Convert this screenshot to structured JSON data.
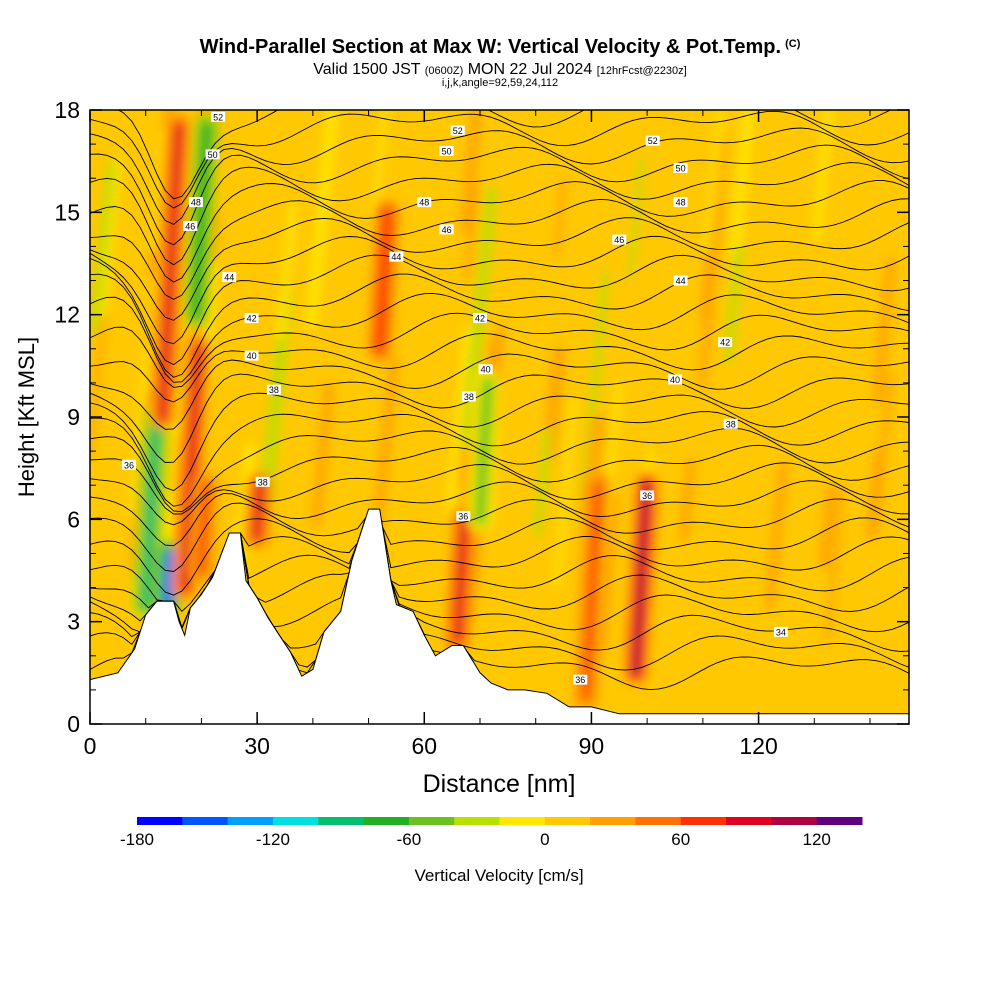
{
  "header": {
    "title": "Wind-Parallel Section at Max W: Vertical Velocity & Pot.Temp.",
    "title_units": "(C)",
    "valid_prefix": "Valid 1500 JST",
    "valid_utc": "(0600Z)",
    "valid_date": "MON 22 Jul 2024",
    "forecast_info": "[12hrFcst@2230z]",
    "section_params": "i,j,k,angle=92,59,24,112"
  },
  "chart_data": {
    "type": "heatmap",
    "xlabel": "Distance [nm]",
    "ylabel": "Height [Kft MSL]",
    "xlim": [
      0,
      147
    ],
    "ylim": [
      0,
      18
    ],
    "x_ticks": [
      0,
      30,
      60,
      90,
      120
    ],
    "y_ticks": [
      0,
      3,
      6,
      9,
      12,
      15,
      18
    ],
    "colorbar": {
      "label": "Vertical Velocity [cm/s]",
      "min": -180,
      "max": 140,
      "ticks": [
        -180,
        -120,
        -60,
        0,
        60,
        120
      ],
      "colors": [
        "#0000ff",
        "#0055ff",
        "#00a0ff",
        "#00e0e0",
        "#00c070",
        "#20b020",
        "#6cc020",
        "#b8e000",
        "#ffe800",
        "#ffc800",
        "#ffa000",
        "#ff7000",
        "#ff3000",
        "#e00020",
        "#b00040",
        "#600080"
      ]
    },
    "terrain_kft": [
      [
        0,
        1.3
      ],
      [
        5,
        1.5
      ],
      [
        8,
        2.2
      ],
      [
        10,
        3.2
      ],
      [
        12,
        3.6
      ],
      [
        15,
        3.6
      ],
      [
        16,
        3.0
      ],
      [
        17,
        2.6
      ],
      [
        18,
        3.4
      ],
      [
        20,
        3.8
      ],
      [
        22,
        4.3
      ],
      [
        25,
        5.6
      ],
      [
        27,
        5.6
      ],
      [
        28,
        4.2
      ],
      [
        30,
        3.7
      ],
      [
        32,
        3.1
      ],
      [
        34,
        2.6
      ],
      [
        36,
        2.1
      ],
      [
        38,
        1.4
      ],
      [
        40,
        1.6
      ],
      [
        42,
        2.7
      ],
      [
        45,
        3.3
      ],
      [
        47,
        4.8
      ],
      [
        50,
        6.3
      ],
      [
        52,
        6.3
      ],
      [
        54,
        4.2
      ],
      [
        55,
        3.5
      ],
      [
        58,
        3.3
      ],
      [
        60,
        2.6
      ],
      [
        62,
        2.0
      ],
      [
        65,
        2.3
      ],
      [
        67,
        2.3
      ],
      [
        70,
        1.5
      ],
      [
        72,
        1.2
      ],
      [
        75,
        1.0
      ],
      [
        78,
        1.0
      ],
      [
        82,
        0.9
      ],
      [
        86,
        0.5
      ],
      [
        90,
        0.5
      ],
      [
        95,
        0.3
      ],
      [
        147,
        0.3
      ]
    ],
    "theta_contours": [
      {
        "level": 34,
        "label_at": [
          124,
          2.7
        ]
      },
      {
        "level": 36,
        "label_at": [
          7,
          7.6
        ]
      },
      {
        "level": 36,
        "label_at": [
          67,
          6.1
        ]
      },
      {
        "level": 36,
        "label_at": [
          88,
          1.3
        ]
      },
      {
        "level": 36,
        "label_at": [
          100,
          6.7
        ]
      },
      {
        "level": 38,
        "label_at": [
          31,
          7.1
        ]
      },
      {
        "level": 38,
        "label_at": [
          33,
          9.8
        ]
      },
      {
        "level": 38,
        "label_at": [
          68,
          9.6
        ]
      },
      {
        "level": 38,
        "label_at": [
          115,
          8.8
        ]
      },
      {
        "level": 40,
        "label_at": [
          29,
          10.8
        ]
      },
      {
        "level": 40,
        "label_at": [
          71,
          10.4
        ]
      },
      {
        "level": 40,
        "label_at": [
          105,
          10.1
        ]
      },
      {
        "level": 42,
        "label_at": [
          29,
          11.9
        ]
      },
      {
        "level": 42,
        "label_at": [
          70,
          11.9
        ]
      },
      {
        "level": 42,
        "label_at": [
          114,
          11.2
        ]
      },
      {
        "level": 44,
        "label_at": [
          25,
          13.1
        ]
      },
      {
        "level": 44,
        "label_at": [
          55,
          13.7
        ]
      },
      {
        "level": 44,
        "label_at": [
          106,
          13.0
        ]
      },
      {
        "level": 46,
        "label_at": [
          18,
          14.6
        ]
      },
      {
        "level": 46,
        "label_at": [
          64,
          14.5
        ]
      },
      {
        "level": 46,
        "label_at": [
          95,
          14.2
        ]
      },
      {
        "level": 48,
        "label_at": [
          19,
          15.3
        ]
      },
      {
        "level": 48,
        "label_at": [
          60,
          15.3
        ]
      },
      {
        "level": 48,
        "label_at": [
          106,
          15.3
        ]
      },
      {
        "level": 50,
        "label_at": [
          22,
          16.7
        ]
      },
      {
        "level": 50,
        "label_at": [
          64,
          16.8
        ]
      },
      {
        "level": 50,
        "label_at": [
          106,
          16.3
        ]
      },
      {
        "level": 52,
        "label_at": [
          23,
          17.8
        ]
      },
      {
        "level": 52,
        "label_at": [
          66,
          17.4
        ]
      },
      {
        "level": 52,
        "label_at": [
          101,
          17.1
        ]
      }
    ],
    "velocity_features": [
      {
        "x": 10,
        "z_range": [
          3.5,
          9.0
        ],
        "w": -90
      },
      {
        "x": 13,
        "z_range": [
          9.0,
          17.5
        ],
        "w": 80
      },
      {
        "x": 14,
        "z_range": [
          3.6,
          5.0
        ],
        "w": -150
      },
      {
        "x": 17,
        "z_range": [
          4.0,
          11.0
        ],
        "w": 90
      },
      {
        "x": 19,
        "z_range": [
          12.0,
          17.5
        ],
        "w": -70
      },
      {
        "x": 20,
        "z_range": [
          4.5,
          7.0
        ],
        "w": 60
      },
      {
        "x": 30,
        "z_range": [
          5.5,
          7.0
        ],
        "w": 80
      },
      {
        "x": 52,
        "z_range": [
          11.0,
          15.0
        ],
        "w": 70
      },
      {
        "x": 66,
        "z_range": [
          2.5,
          6.0
        ],
        "w": 90
      },
      {
        "x": 70,
        "z_range": [
          6.0,
          10.0
        ],
        "w": -50
      },
      {
        "x": 89,
        "z_range": [
          0.8,
          7.0
        ],
        "w": 60
      },
      {
        "x": 98,
        "z_range": [
          1.5,
          7.0
        ],
        "w": 110
      }
    ]
  }
}
